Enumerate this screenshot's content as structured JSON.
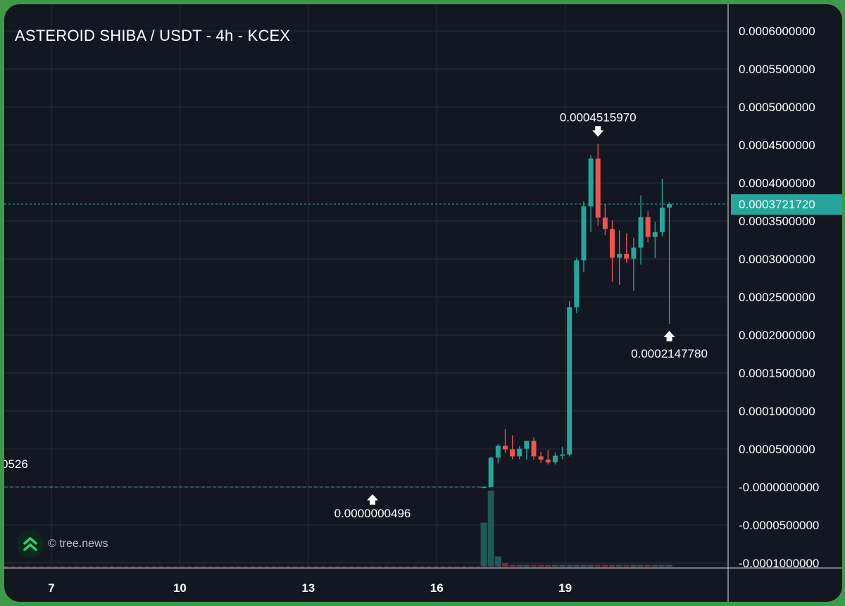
{
  "chart_data": {
    "type": "candlestick",
    "title": "ASTEROID SHIBA / USDT - 4h - KCEX",
    "x_ticks": [
      "7",
      "10",
      "13",
      "16",
      "19"
    ],
    "y_ticks": [
      "0.0006000000",
      "0.0005500000",
      "0.0005000000",
      "0.0004500000",
      "0.0004000000",
      "0.0003500000",
      "0.0003000000",
      "0.0002500000",
      "0.0002000000",
      "0.0001500000",
      "0.0001000000",
      "0.0000500000",
      "-0.0000000000",
      "-0.0000500000",
      "-0.0001000000"
    ],
    "ylim": [
      -0.0001,
      0.0006
    ],
    "grid": true,
    "last_price": "0.0003721720",
    "last_price_value": 0.000372172,
    "high_annotation": {
      "label": "0.0004515970",
      "value": 0.000451597
    },
    "low_annotation": {
      "label": "0.0002147780",
      "value": 0.000214778
    },
    "early_low_annotation": {
      "label": "0.0000000496",
      "value": 4.96e-08
    },
    "left_level_label": "0526",
    "candles": [
      {
        "date": "Day 17 00:00",
        "o": 1e-07,
        "h": 1e-06,
        "l": 4.96e-08,
        "c": 2e-07
      },
      {
        "date": "Day 17 04:00",
        "o": 2e-07,
        "h": 4e-05,
        "l": 1e-07,
        "c": 3.866e-05
      },
      {
        "date": "Day 17 08:00",
        "o": 3.866e-05,
        "h": 5.637e-05,
        "l": 3.11e-05,
        "c": 5.43e-05
      },
      {
        "date": "Day 17 12:00",
        "o": 5.43e-05,
        "h": 7.637e-05,
        "l": 4.49e-05,
        "c": 4.96e-05
      },
      {
        "date": "Day 17 16:00",
        "o": 4.96e-05,
        "h": 6.81e-05,
        "l": 3.66e-05,
        "c": 4.04e-05
      },
      {
        "date": "Day 17 20:00",
        "o": 4.04e-05,
        "h": 5.41e-05,
        "l": 3.65e-05,
        "c": 5.04e-05
      },
      {
        "date": "Day 18 00:00",
        "o": 5.04e-05,
        "h": 6.07e-05,
        "l": 3.61e-05,
        "c": 6.08e-05
      },
      {
        "date": "Day 18 04:00",
        "o": 6.08e-05,
        "h": 6.54e-05,
        "l": 3.61e-05,
        "c": 4.04e-05
      },
      {
        "date": "Day 18 08:00",
        "o": 4.04e-05,
        "h": 4.66e-05,
        "l": 3.17e-05,
        "c": 3.62e-05
      },
      {
        "date": "Day 18 12:00",
        "o": 3.62e-05,
        "h": 4.88e-05,
        "l": 2.97e-05,
        "c": 3.25e-05
      },
      {
        "date": "Day 18 16:00",
        "o": 3.25e-05,
        "h": 4.57e-05,
        "l": 2.96e-05,
        "c": 4.12e-05
      },
      {
        "date": "Day 18 20:00",
        "o": 4.12e-05,
        "h": 5.29e-05,
        "l": 3.65e-05,
        "c": 4.29e-05
      },
      {
        "date": "Day 19 00:00",
        "o": 4.29e-05,
        "h": 0.0002445,
        "l": 4.03e-05,
        "c": 0.0002367
      },
      {
        "date": "Day 19 04:00",
        "o": 0.0002367,
        "h": 0.0003018,
        "l": 0.000229,
        "c": 0.0002982
      },
      {
        "date": "Day 19 08:00",
        "o": 0.0002982,
        "h": 0.0003762,
        "l": 0.0002824,
        "c": 0.0003692
      },
      {
        "date": "Day 19 12:00",
        "o": 0.0003692,
        "h": 0.0004366,
        "l": 0.0003352,
        "c": 0.0004321
      },
      {
        "date": "Day 19 16:00",
        "o": 0.0004321,
        "h": 0.000451597,
        "l": 0.0003437,
        "c": 0.0003545
      },
      {
        "date": "Day 19 20:00",
        "o": 0.0003545,
        "h": 0.0003726,
        "l": 0.0003313,
        "c": 0.0003396
      },
      {
        "date": "Day 20 00:00",
        "o": 0.0003396,
        "h": 0.0003506,
        "l": 0.0002705,
        "c": 0.0003017
      },
      {
        "date": "Day 20 04:00",
        "o": 0.0003017,
        "h": 0.0003374,
        "l": 0.0002658,
        "c": 0.0003066
      },
      {
        "date": "Day 20 08:00",
        "o": 0.0003066,
        "h": 0.0003339,
        "l": 0.0002945,
        "c": 0.0003004
      },
      {
        "date": "Day 20 12:00",
        "o": 0.0003004,
        "h": 0.0003281,
        "l": 0.000258,
        "c": 0.0003151
      },
      {
        "date": "Day 20 16:00",
        "o": 0.0003151,
        "h": 0.0003838,
        "l": 0.0002928,
        "c": 0.0003552
      },
      {
        "date": "Day 20 20:00",
        "o": 0.0003552,
        "h": 0.0003628,
        "l": 0.0003219,
        "c": 0.0003291
      },
      {
        "date": "Day 21 00:00",
        "o": 0.0003291,
        "h": 0.0003487,
        "l": 0.0003012,
        "c": 0.0003352
      },
      {
        "date": "Day 21 04:00",
        "o": 0.0003352,
        "h": 0.0004056,
        "l": 0.0003298,
        "c": 0.0003677
      },
      {
        "date": "Day 21 08:00",
        "o": 0.0003677,
        "h": 0.0003747,
        "l": 0.000214778,
        "c": 0.000372172
      }
    ],
    "volume": [
      0.52,
      0.9,
      0.12,
      0.04,
      0.02,
      0.02,
      0.02,
      0.02,
      0.02,
      0.02,
      0.02,
      0.02,
      0.02,
      0.02,
      0.02,
      0.02,
      0.02,
      0.02,
      0.02,
      0.02,
      0.02,
      0.02,
      0.02,
      0.02,
      0.02,
      0.02,
      0.02
    ]
  },
  "watermark": {
    "text": "© tree.news",
    "logo": "double-chevron-up-icon"
  },
  "colors": {
    "background": "#131722",
    "grid": "#2a2e39",
    "up": "#26a69a",
    "down": "#ef5350",
    "price_badge": "#26a69a",
    "frame": "#3f9a48"
  }
}
